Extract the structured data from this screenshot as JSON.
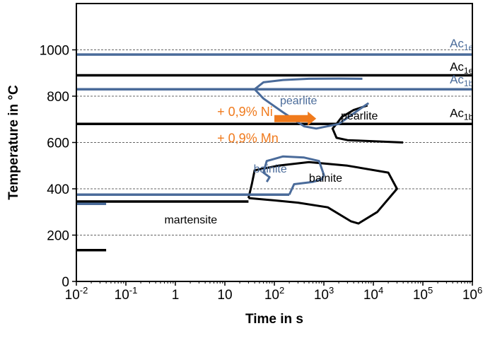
{
  "chart_data": {
    "type": "line",
    "title": "",
    "xlabel": "Time in s",
    "ylabel": "Temperature in °C",
    "xscale": "log",
    "xlim": [
      0.01,
      1000000
    ],
    "ylim": [
      0,
      1200
    ],
    "xticks": [
      {
        "value": 0.01,
        "base": "10",
        "exp": "-2"
      },
      {
        "value": 0.1,
        "base": "10",
        "exp": "-1"
      },
      {
        "value": 1,
        "base": "1",
        "exp": ""
      },
      {
        "value": 10,
        "base": "10",
        "exp": ""
      },
      {
        "value": 100,
        "base": "10",
        "exp": "2"
      },
      {
        "value": 1000,
        "base": "10",
        "exp": "3"
      },
      {
        "value": 10000,
        "base": "10",
        "exp": "4"
      },
      {
        "value": 100000,
        "base": "10",
        "exp": "5"
      },
      {
        "value": 1000000,
        "base": "10",
        "exp": "6"
      }
    ],
    "yticks": [
      0,
      200,
      400,
      600,
      800,
      1000
    ],
    "grid": "horizontal dashed at y ticks",
    "colors": {
      "base": "#000000",
      "alloyed": "#4a6b9a",
      "annotation": "#f07a1c"
    },
    "series": [
      {
        "color": "base",
        "kind": "Ac1e",
        "points": [
          [
            0.01,
            890
          ],
          [
            1000000,
            890
          ]
        ]
      },
      {
        "color": "base",
        "kind": "Ac1b",
        "points": [
          [
            0.01,
            680
          ],
          [
            1000000,
            680
          ]
        ]
      },
      {
        "color": "base",
        "kind": "Ms",
        "points": [
          [
            0.01,
            345
          ],
          [
            30,
            345
          ]
        ]
      },
      {
        "color": "base",
        "kind": "Mf",
        "points": [
          [
            0.01,
            135
          ],
          [
            0.04,
            135
          ]
        ]
      },
      {
        "color": "base",
        "kind": "pearlite-start",
        "points": [
          [
            7600,
            760
          ],
          [
            4000,
            740
          ],
          [
            2300,
            710
          ],
          [
            1800,
            680
          ],
          [
            1500,
            660
          ],
          [
            1800,
            620
          ],
          [
            3000,
            610
          ],
          [
            40000,
            600
          ]
        ]
      },
      {
        "color": "base",
        "kind": "bainite-field",
        "points": [
          [
            30,
            360
          ],
          [
            35,
            420
          ],
          [
            40,
            480
          ],
          [
            120,
            500
          ],
          [
            500,
            515
          ],
          [
            3000,
            500
          ],
          [
            20000,
            470
          ],
          [
            30000,
            400
          ],
          [
            12000,
            300
          ],
          [
            5000,
            250
          ],
          [
            3500,
            260
          ],
          [
            1200,
            320
          ],
          [
            300,
            340
          ],
          [
            100,
            350
          ],
          [
            30,
            360
          ]
        ]
      },
      {
        "color": "alloyed",
        "kind": "Ac1e",
        "points": [
          [
            0.01,
            980
          ],
          [
            1000000,
            980
          ]
        ]
      },
      {
        "color": "alloyed",
        "kind": "Ac1b",
        "points": [
          [
            0.01,
            830
          ],
          [
            1000000,
            830
          ]
        ]
      },
      {
        "color": "alloyed",
        "kind": "Ms",
        "points": [
          [
            0.01,
            375
          ],
          [
            200,
            375
          ]
        ]
      },
      {
        "color": "alloyed",
        "kind": "Mf",
        "points": [
          [
            0.01,
            335
          ],
          [
            0.04,
            335
          ]
        ]
      },
      {
        "color": "alloyed",
        "kind": "pearlite-start",
        "points": [
          [
            6000,
            875
          ],
          [
            2000,
            876
          ],
          [
            500,
            875
          ],
          [
            150,
            870
          ],
          [
            60,
            860
          ],
          [
            40,
            830
          ],
          [
            60,
            790
          ],
          [
            150,
            730
          ],
          [
            400,
            670
          ],
          [
            700,
            660
          ],
          [
            2000,
            680
          ],
          [
            5000,
            740
          ],
          [
            8000,
            770
          ]
        ]
      },
      {
        "color": "alloyed",
        "kind": "bainite-nose",
        "points": [
          [
            200,
            375
          ],
          [
            250,
            420
          ],
          [
            600,
            430
          ],
          [
            900,
            440
          ],
          [
            1000,
            460
          ],
          [
            800,
            520
          ],
          [
            400,
            535
          ],
          [
            150,
            540
          ],
          [
            70,
            520
          ],
          [
            60,
            470
          ],
          [
            80,
            450
          ],
          [
            70,
            430
          ]
        ]
      }
    ],
    "annotations": [
      {
        "text": "Ac",
        "sub": "1e",
        "color": "alloyed",
        "x": 350000,
        "y": 1010
      },
      {
        "text": "Ac",
        "sub": "1e",
        "color": "base",
        "x": 350000,
        "y": 910
      },
      {
        "text": "Ac",
        "sub": "1b",
        "color": "alloyed",
        "x": 350000,
        "y": 855
      },
      {
        "text": "Ac",
        "sub": "1b",
        "color": "base",
        "x": 350000,
        "y": 710
      },
      {
        "text": "pearlite",
        "sub": "",
        "color": "alloyed",
        "x": 130,
        "y": 765
      },
      {
        "text": "pearlite",
        "sub": "",
        "color": "base",
        "x": 2200,
        "y": 700
      },
      {
        "text": "+ 0,9% Ni",
        "sub": "",
        "color": "annotation",
        "x": 7,
        "y": 715
      },
      {
        "text": "+ 0,9% Mn",
        "sub": "",
        "color": "annotation",
        "x": 7,
        "y": 600
      },
      {
        "text": "bainite",
        "sub": "",
        "color": "alloyed",
        "x": 38,
        "y": 470
      },
      {
        "text": "bainite",
        "sub": "",
        "color": "base",
        "x": 500,
        "y": 430
      },
      {
        "text": "martensite",
        "sub": "",
        "color": "base",
        "x": 0.6,
        "y": 250
      }
    ],
    "arrow": {
      "color": "annotation",
      "from": [
        100,
        703
      ],
      "to": [
        700,
        703
      ]
    }
  }
}
